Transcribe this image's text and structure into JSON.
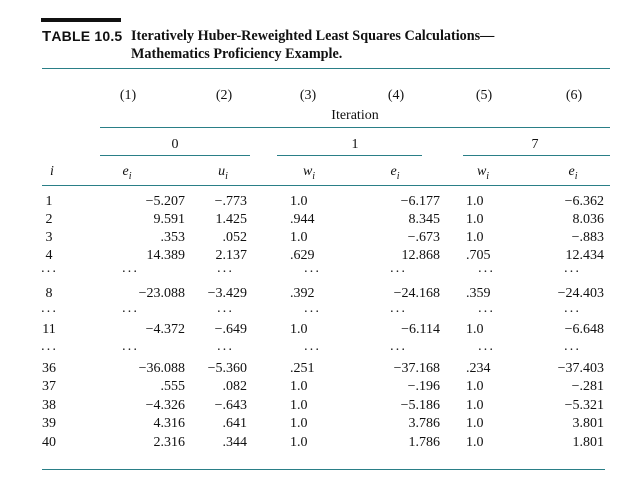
{
  "table": {
    "label_prefix": "T",
    "label_rest": "ABLE 10.5",
    "title_line1": "Iteratively Huber-Reweighted Least Squares Calculations—",
    "title_line2": "Mathematics Proficiency Example."
  },
  "columns": {
    "numbers": [
      "(1)",
      "(2)",
      "(3)",
      "(4)",
      "(5)",
      "(6)"
    ],
    "iteration_label": "Iteration",
    "iteration_groups": [
      "0",
      "1",
      "7"
    ],
    "row_index_header": "i",
    "var_headers": [
      {
        "sym": "e",
        "sub": "i"
      },
      {
        "sym": "u",
        "sub": "i"
      },
      {
        "sym": "w",
        "sub": "i"
      },
      {
        "sym": "e",
        "sub": "i"
      },
      {
        "sym": "w",
        "sub": "i"
      },
      {
        "sym": "e",
        "sub": "i"
      }
    ]
  },
  "rows": [
    {
      "i": "1",
      "c1": "−5.207",
      "c2": "−.773",
      "c3": "1.0",
      "c4": "−6.177",
      "c5": "1.0",
      "c6": "−6.362"
    },
    {
      "i": "2",
      "c1": "9.591",
      "c2": "1.425",
      "c3": ".944",
      "c4": "8.345",
      "c5": "1.0",
      "c6": "8.036"
    },
    {
      "i": "3",
      "c1": ".353",
      "c2": ".052",
      "c3": "1.0",
      "c4": "−.673",
      "c5": "1.0",
      "c6": "−.883"
    },
    {
      "i": "4",
      "c1": "14.389",
      "c2": "2.137",
      "c3": ".629",
      "c4": "12.868",
      "c5": ".705",
      "c6": "12.434"
    },
    {
      "i": "···",
      "c1": "···",
      "c2": "···",
      "c3": "···",
      "c4": "···",
      "c5": "···",
      "c6": "···"
    },
    {
      "i": "8",
      "c1": "−23.088",
      "c2": "−3.429",
      "c3": ".392",
      "c4": "−24.168",
      "c5": ".359",
      "c6": "−24.403"
    },
    {
      "i": "···",
      "c1": "···",
      "c2": "···",
      "c3": "···",
      "c4": "···",
      "c5": "···",
      "c6": "···"
    },
    {
      "i": "11",
      "c1": "−4.372",
      "c2": "−.649",
      "c3": "1.0",
      "c4": "−6.114",
      "c5": "1.0",
      "c6": "−6.648"
    },
    {
      "i": "···",
      "c1": "···",
      "c2": "···",
      "c3": "···",
      "c4": "···",
      "c5": "···",
      "c6": "···"
    },
    {
      "i": "36",
      "c1": "−36.088",
      "c2": "−5.360",
      "c3": ".251",
      "c4": "−37.168",
      "c5": ".234",
      "c6": "−37.403"
    },
    {
      "i": "37",
      "c1": ".555",
      "c2": ".082",
      "c3": "1.0",
      "c4": "−.196",
      "c5": "1.0",
      "c6": "−.281"
    },
    {
      "i": "38",
      "c1": "−4.326",
      "c2": "−.643",
      "c3": "1.0",
      "c4": "−5.186",
      "c5": "1.0",
      "c6": "−5.321"
    },
    {
      "i": "39",
      "c1": "4.316",
      "c2": ".641",
      "c3": "1.0",
      "c4": "3.786",
      "c5": "1.0",
      "c6": "3.801"
    },
    {
      "i": "40",
      "c1": "2.316",
      "c2": ".344",
      "c3": "1.0",
      "c4": "1.786",
      "c5": "1.0",
      "c6": "1.801"
    }
  ]
}
